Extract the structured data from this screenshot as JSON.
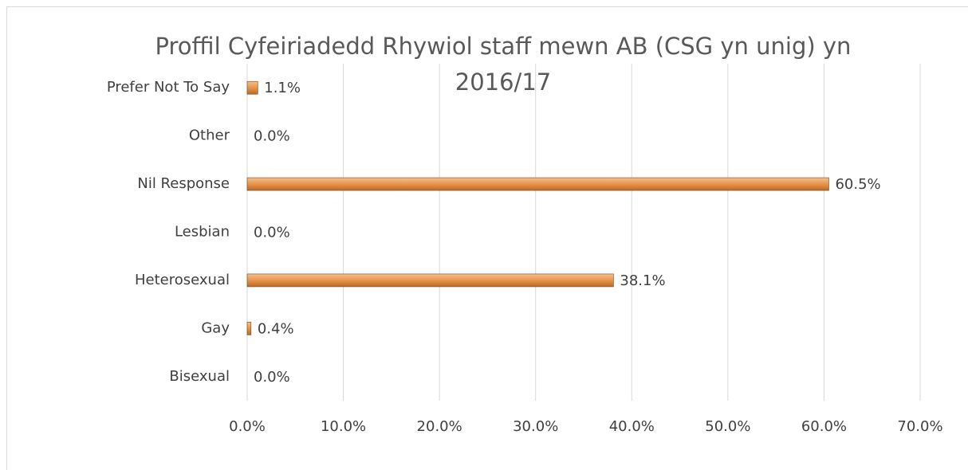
{
  "chart_data": {
    "type": "hbar",
    "title": "Proffil Cyfeiriadedd Rhywiol staff mewn AB (CSG yn unig) yn 2016/17",
    "categories": [
      "Prefer Not To Say",
      "Other",
      "Nil Response",
      "Lesbian",
      "Heterosexual",
      "Gay",
      "Bisexual"
    ],
    "values": [
      1.1,
      0,
      60.5,
      0,
      38.1,
      0.4,
      0
    ],
    "value_labels": [
      "1.1%",
      "0.0%",
      "60.5%",
      "0.0%",
      "38.1%",
      "0.4%",
      "0.0%"
    ],
    "color": "#e8944a",
    "xlim": [
      0,
      70
    ],
    "xticks": [
      {
        "value": 0,
        "label": "0.0%"
      },
      {
        "value": 10,
        "label": "10.0%"
      },
      {
        "value": 20,
        "label": "20.0%"
      },
      {
        "value": 30,
        "label": "30.0%"
      },
      {
        "value": 40,
        "label": "40.0%"
      },
      {
        "value": 50,
        "label": "50.0%"
      },
      {
        "value": 60,
        "label": "60.0%"
      },
      {
        "value": 70,
        "label": "70.0%"
      }
    ],
    "grid": true
  }
}
